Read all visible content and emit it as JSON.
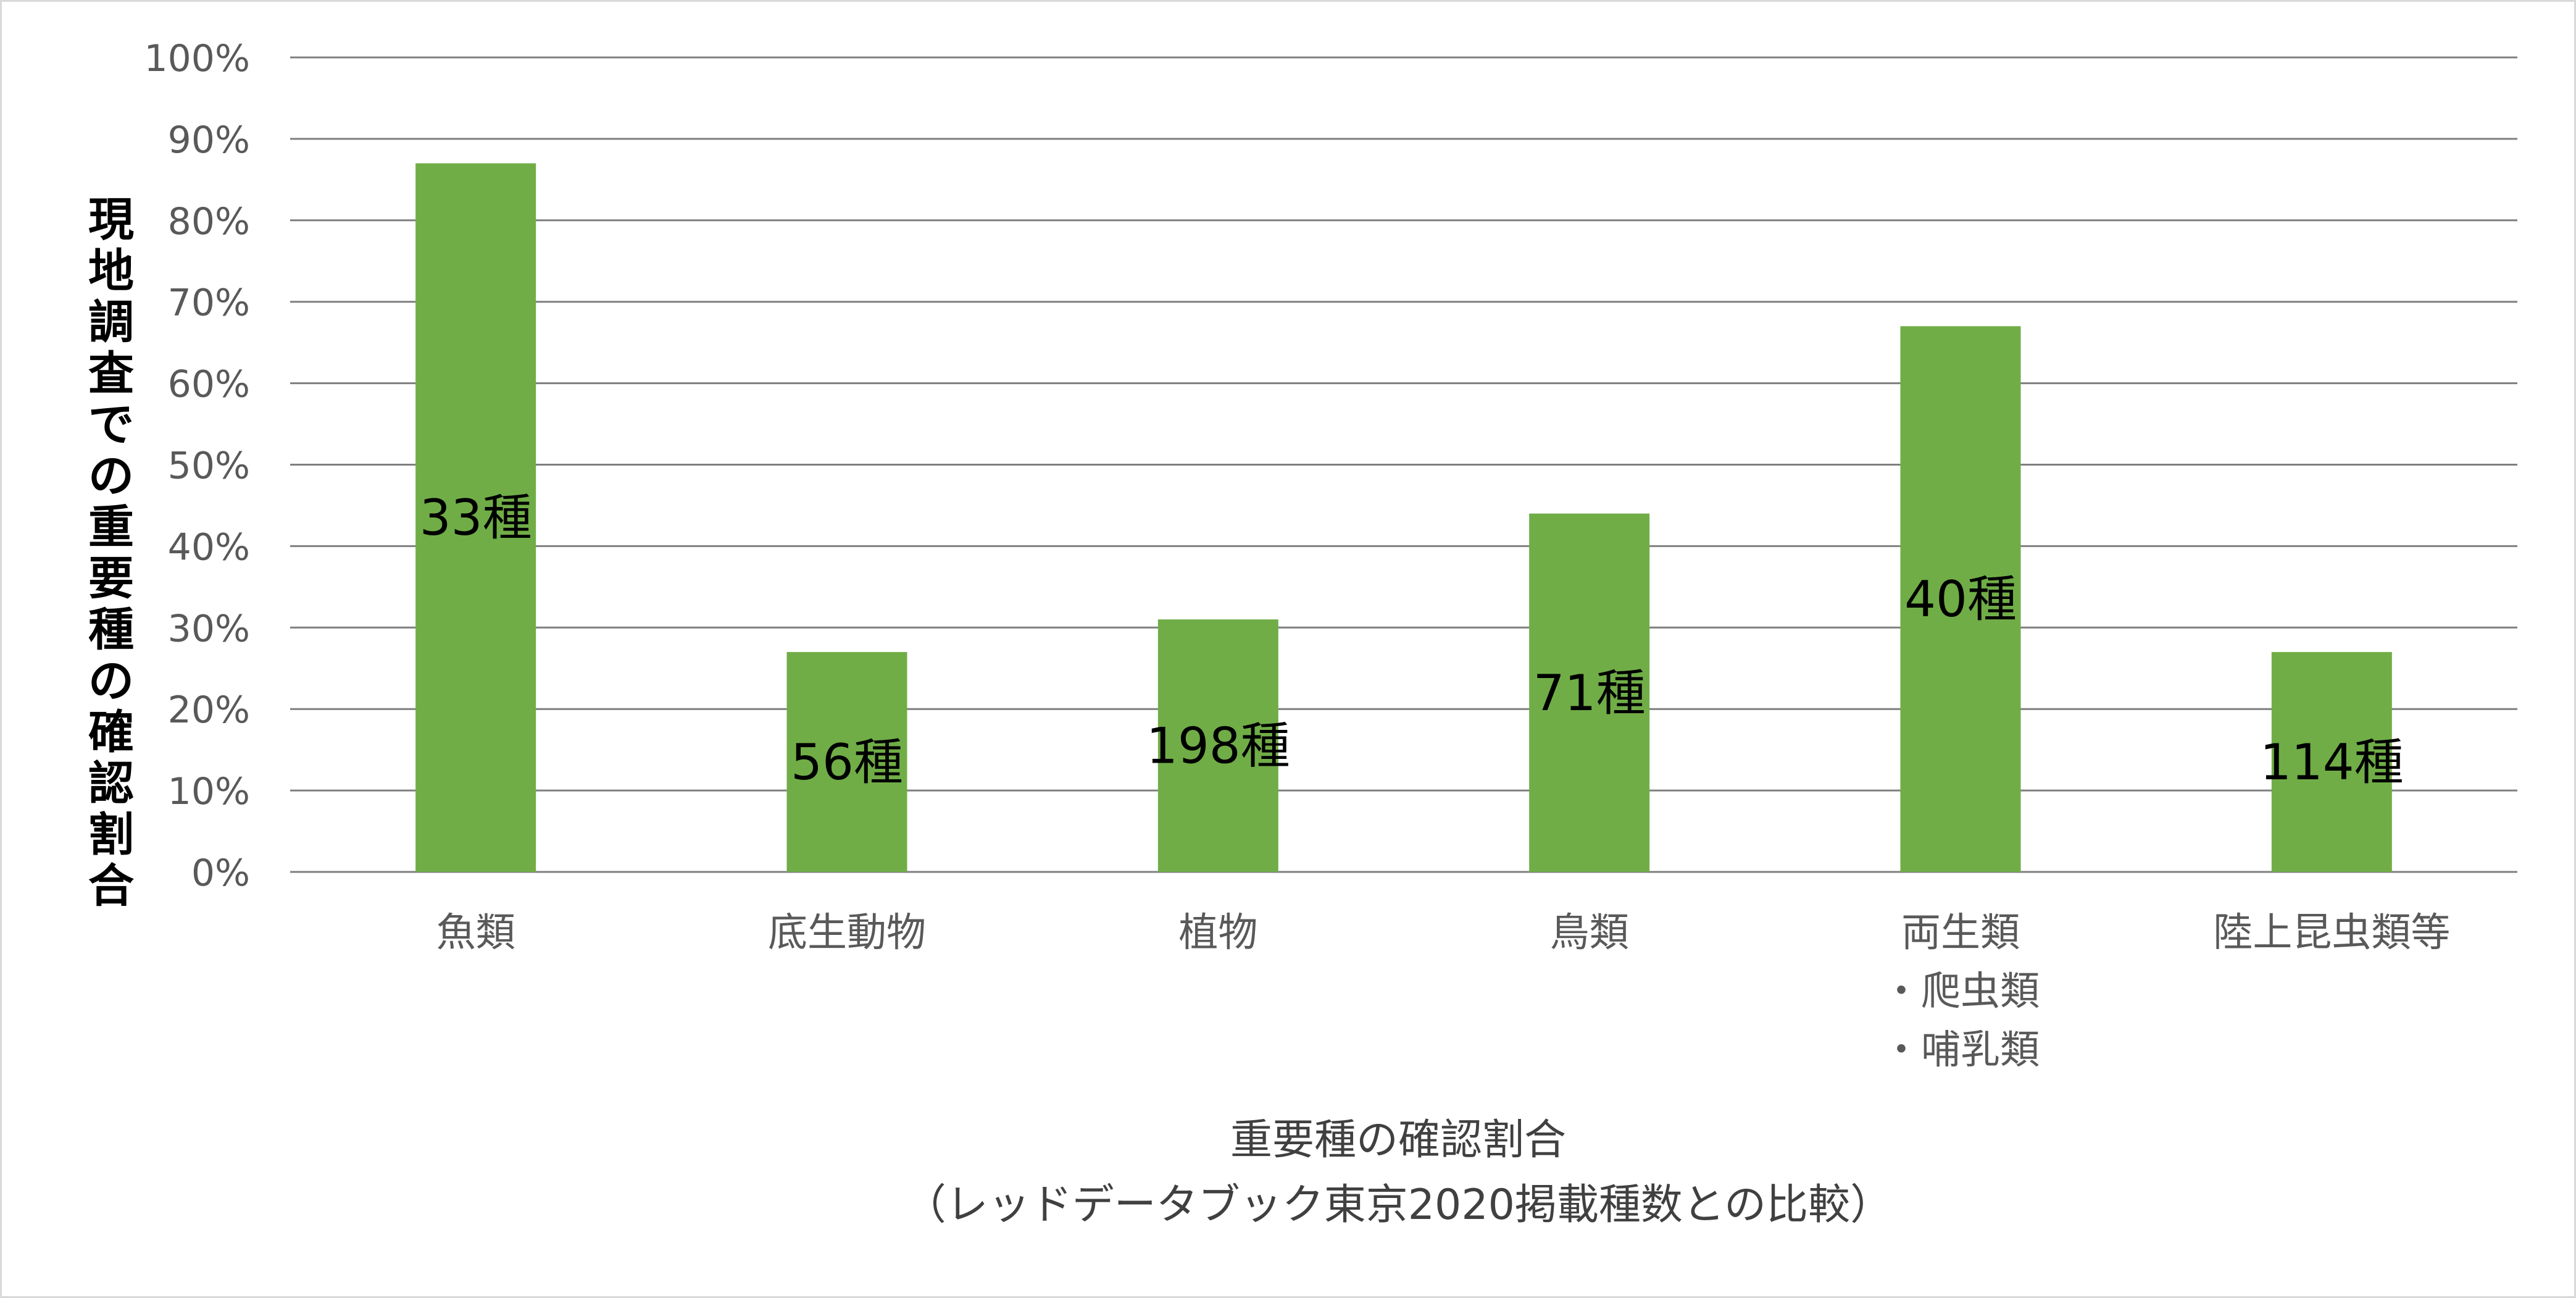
{
  "chart_data": {
    "type": "bar",
    "categories": [
      "魚類",
      "底生動物",
      "植物",
      "鳥類",
      "両生類\n・爬虫類\n・哺乳類",
      "陸上昆虫類等"
    ],
    "values": [
      87,
      27,
      31,
      44,
      67,
      27
    ],
    "data_labels": [
      "33種",
      "56種",
      "198種",
      "71種",
      "40種",
      "114種"
    ],
    "ylabel": "現地調査での重要種の確認割合",
    "xlabel": [
      "重要種の確認割合",
      "（レッドデータブック東京2020掲載種数との比較）"
    ],
    "ylim": [
      0,
      100
    ],
    "yticks": [
      "0%",
      "10%",
      "20%",
      "30%",
      "40%",
      "50%",
      "60%",
      "70%",
      "80%",
      "90%",
      "100%"
    ],
    "grid": true,
    "legend": "none",
    "colors": {
      "bar": "#70ad47",
      "grid": "#7f7f7f",
      "tick_text": "#595959",
      "label_text": "#000000"
    }
  }
}
